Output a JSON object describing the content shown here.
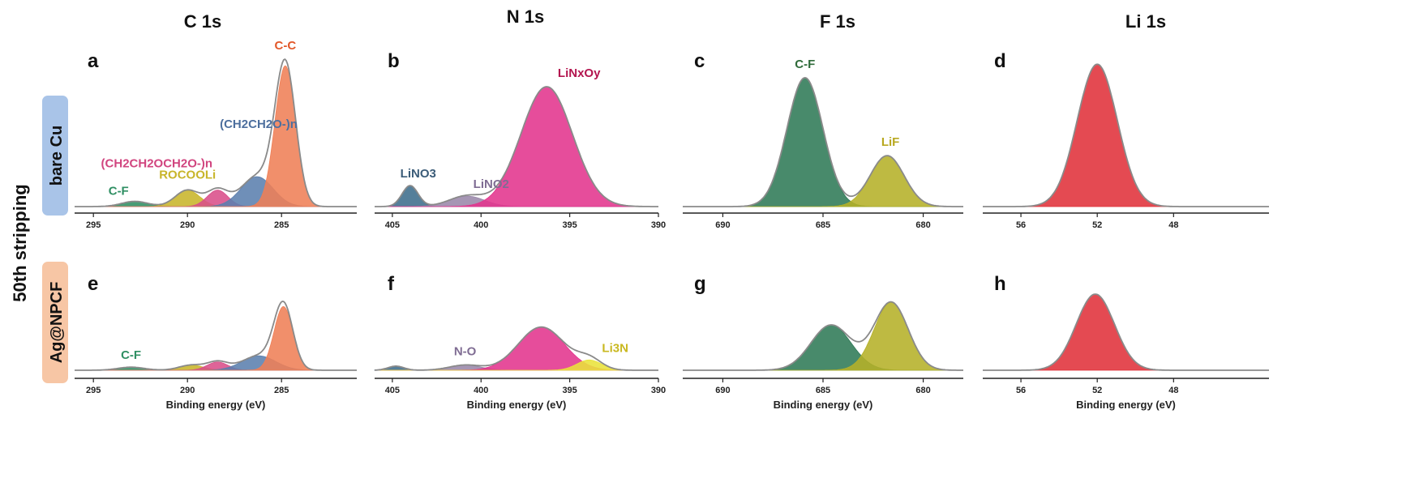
{
  "figure": {
    "side_label": "50th stripping",
    "columns": [
      "C 1s",
      "N 1s",
      "F 1s",
      "Li 1s"
    ],
    "rows": [
      {
        "label": "bare Cu",
        "color": "#a9c4e8"
      },
      {
        "label": "Ag@NPCF",
        "color": "#f7c6a5"
      }
    ],
    "xlabel": "Binding energy (eV)",
    "xlabel_f1s": "Binding  energy (eV)"
  },
  "chart_data": [
    {
      "type": "area",
      "panel": "a",
      "title": "C 1s",
      "xlim": [
        296,
        281
      ],
      "ticks": [
        295,
        290,
        285
      ],
      "xlabel": "",
      "envelope_color": "#8a8a8a",
      "series": [
        {
          "name": "C-F",
          "center": 292.8,
          "height": 0.035,
          "sigma": 0.7,
          "color": "#2f8f63",
          "label_color": "#2f8f63"
        },
        {
          "name": "ROCOOLi",
          "center": 290.0,
          "height": 0.11,
          "sigma": 0.65,
          "color": "#c8b52a",
          "label_color": "#c8b52a"
        },
        {
          "name": "(CH2CH2OCH2O-)n",
          "center": 288.4,
          "height": 0.11,
          "sigma": 0.55,
          "color": "#d94f8a",
          "label_color": "#d1457f"
        },
        {
          "name": "(CH2CH2O-)n",
          "center": 286.3,
          "height": 0.2,
          "sigma": 0.85,
          "color": "#5b7fae",
          "label_color": "#4d6f9e"
        },
        {
          "name": "C-C",
          "center": 284.8,
          "height": 0.94,
          "sigma": 0.55,
          "color": "#ef7f56",
          "label_color": "#e2582a"
        }
      ]
    },
    {
      "type": "area",
      "panel": "b",
      "title": "N 1s",
      "xlim": [
        406,
        390
      ],
      "ticks": [
        405,
        400,
        395,
        390
      ],
      "xlabel": "",
      "envelope_color": "#8a8a8a",
      "series": [
        {
          "name": "LiNO3",
          "center": 404.0,
          "height": 0.14,
          "sigma": 0.45,
          "color": "#3e6d8c",
          "label_color": "#3b5c78"
        },
        {
          "name": "LiNO2",
          "center": 400.8,
          "height": 0.07,
          "sigma": 1.0,
          "color": "#9a87aa",
          "label_color": "#7f6c93"
        },
        {
          "name": "LiNxOy",
          "center": 396.3,
          "height": 0.8,
          "sigma": 1.45,
          "color": "#e3348d",
          "label_color": "#b3154f"
        }
      ]
    },
    {
      "type": "area",
      "panel": "c",
      "title": "F 1s",
      "xlim": [
        692,
        678
      ],
      "ticks": [
        690,
        685,
        680
      ],
      "xlabel": "",
      "envelope_color": "#8a8a8a",
      "series": [
        {
          "name": "C-F",
          "center": 685.9,
          "height": 0.86,
          "sigma": 0.9,
          "color": "#2f7a57",
          "label_color": "#2f6b3a"
        },
        {
          "name": "LiF",
          "center": 681.8,
          "height": 0.34,
          "sigma": 0.85,
          "color": "#b5b128",
          "label_color": "#b8a820"
        }
      ]
    },
    {
      "type": "area",
      "panel": "d",
      "title": "Li 1s",
      "xlim": [
        58,
        43
      ],
      "ticks": [
        56,
        52,
        48
      ],
      "xlabel": "",
      "envelope_color": "#8a8a8a",
      "series": [
        {
          "name": "",
          "center": 52.0,
          "height": 0.95,
          "sigma": 1.05,
          "color": "#e0313a",
          "label_color": "#e0313a"
        }
      ]
    },
    {
      "type": "area",
      "panel": "e",
      "title": "",
      "xlim": [
        296,
        281
      ],
      "ticks": [
        295,
        290,
        285
      ],
      "xlabel": "Binding energy (eV)",
      "envelope_color": "#8a8a8a",
      "series": [
        {
          "name": "C-F",
          "center": 293.0,
          "height": 0.03,
          "sigma": 0.7,
          "color": "#2f8f63",
          "label_color": "#2f8f63"
        },
        {
          "name": "",
          "center": 289.8,
          "height": 0.05,
          "sigma": 0.65,
          "color": "#c8b52a",
          "label_color": "#c8b52a"
        },
        {
          "name": "",
          "center": 288.4,
          "height": 0.08,
          "sigma": 0.55,
          "color": "#d94f8a",
          "label_color": "#d1457f"
        },
        {
          "name": "",
          "center": 286.2,
          "height": 0.14,
          "sigma": 0.9,
          "color": "#5b7fae",
          "label_color": "#4d6f9e"
        },
        {
          "name": "",
          "center": 284.9,
          "height": 0.62,
          "sigma": 0.5,
          "color": "#ef7f56",
          "label_color": "#e2582a"
        }
      ]
    },
    {
      "type": "area",
      "panel": "f",
      "title": "",
      "xlim": [
        406,
        390
      ],
      "ticks": [
        405,
        400,
        395,
        390
      ],
      "xlabel": "Binding energy (eV)",
      "envelope_color": "#8a8a8a",
      "series": [
        {
          "name": "",
          "center": 404.8,
          "height": 0.04,
          "sigma": 0.45,
          "color": "#3e6d8c",
          "label_color": "#3b5c78"
        },
        {
          "name": "N-O",
          "center": 400.9,
          "height": 0.05,
          "sigma": 0.9,
          "color": "#9a87aa",
          "label_color": "#7f6c93"
        },
        {
          "name": "",
          "center": 396.6,
          "height": 0.42,
          "sigma": 1.3,
          "color": "#e3348d",
          "label_color": "#b3154f"
        },
        {
          "name": "Li3N",
          "center": 393.9,
          "height": 0.1,
          "sigma": 0.7,
          "color": "#e9e33a",
          "label_color": "#c9b820"
        }
      ]
    },
    {
      "type": "area",
      "panel": "g",
      "title": "",
      "xlim": [
        692,
        678
      ],
      "ticks": [
        690,
        685,
        680
      ],
      "xlabel": "Binding  energy (eV)",
      "envelope_color": "#8a8a8a",
      "series": [
        {
          "name": "",
          "center": 684.6,
          "height": 0.44,
          "sigma": 1.0,
          "color": "#2f7a57",
          "label_color": "#2f6b3a"
        },
        {
          "name": "",
          "center": 681.6,
          "height": 0.66,
          "sigma": 0.85,
          "color": "#b5b128",
          "label_color": "#b8a820"
        }
      ]
    },
    {
      "type": "area",
      "panel": "h",
      "title": "",
      "xlim": [
        58,
        43
      ],
      "ticks": [
        56,
        52,
        48
      ],
      "xlabel": "Binding energy (eV)",
      "envelope_color": "#8a8a8a",
      "series": [
        {
          "name": "",
          "center": 52.1,
          "height": 0.74,
          "sigma": 1.0,
          "color": "#e0313a",
          "label_color": "#e0313a"
        }
      ]
    }
  ]
}
